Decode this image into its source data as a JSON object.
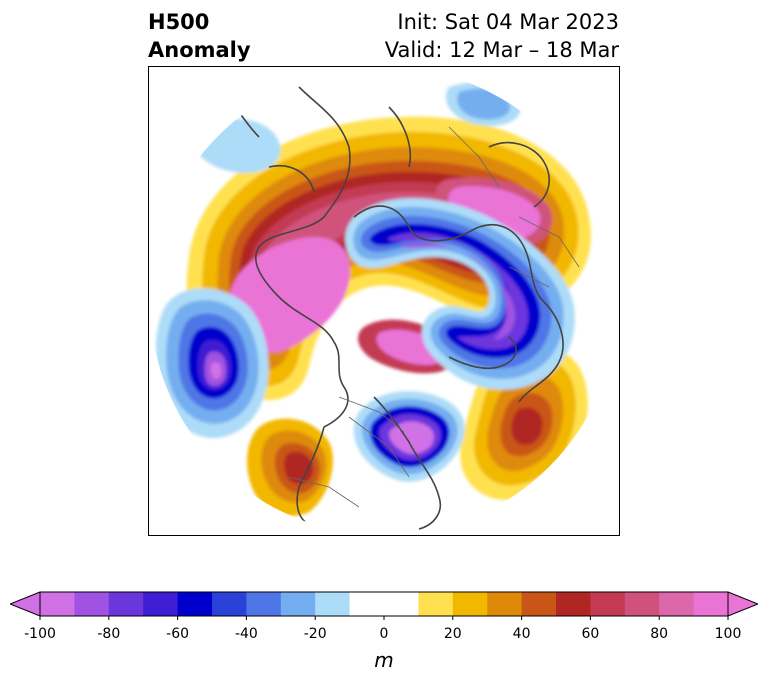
{
  "title": {
    "left_line1": "H500",
    "left_line2": "Anomaly",
    "init": "Init: Sat 04 Mar 2023",
    "valid": "Valid: 12 Mar – 18 Mar"
  },
  "map": {
    "projection": "north-polar-stereographic",
    "variable": "500 hPa geopotential height anomaly",
    "features": [
      {
        "name": "ridge-north-america-west",
        "sign": "positive",
        "peak": 100
      },
      {
        "name": "ridge-north-atlantic-greenland",
        "sign": "positive",
        "peak": 90
      },
      {
        "name": "ridge-north-pacific-east",
        "sign": "positive",
        "peak": 70
      },
      {
        "name": "ridge-southwest-europe",
        "sign": "positive",
        "peak": 60
      },
      {
        "name": "trough-siberia-arctic",
        "sign": "negative",
        "peak": -100
      },
      {
        "name": "trough-eastern-europe",
        "sign": "negative",
        "peak": -100
      },
      {
        "name": "trough-north-pacific-central",
        "sign": "negative",
        "peak": -100
      }
    ]
  },
  "colorbar": {
    "label": "m",
    "min": -100,
    "max": 100,
    "extend": "both",
    "ticks": [
      "-100",
      "-80",
      "-60",
      "-40",
      "-20",
      "0",
      "20",
      "40",
      "60",
      "80",
      "100"
    ],
    "colors": [
      "#d071e6",
      "#a053e2",
      "#6c36dd",
      "#3d1ed3",
      "#0000cc",
      "#2a41d8",
      "#4f76e6",
      "#75aef0",
      "#addcf8",
      "#ffffff",
      "#ffffff",
      "#ffe14f",
      "#f2b800",
      "#de8a08",
      "#c95616",
      "#b02622",
      "#c33a52",
      "#d0527c",
      "#dc67aa",
      "#ea73d6"
    ]
  }
}
